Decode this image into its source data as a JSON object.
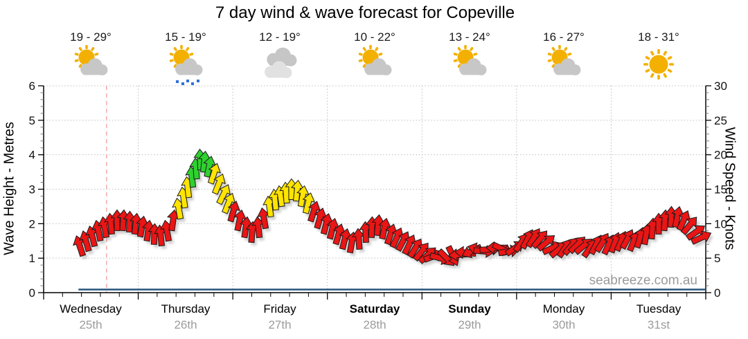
{
  "title": "7 day wind & wave forecast for Copeville",
  "watermark": "seabreeze.com.au",
  "days": [
    {
      "name": "Wednesday",
      "date": "25th",
      "temp": "19 - 29°",
      "icon": "sun-cloud",
      "bold": false
    },
    {
      "name": "Thursday",
      "date": "26th",
      "temp": "15 - 19°",
      "icon": "sun-cloud-showers",
      "bold": false
    },
    {
      "name": "Friday",
      "date": "27th",
      "temp": "12 - 19°",
      "icon": "cloudy",
      "bold": false
    },
    {
      "name": "Saturday",
      "date": "28th",
      "temp": "10 - 22°",
      "icon": "sun-cloud",
      "bold": true
    },
    {
      "name": "Sunday",
      "date": "29th",
      "temp": "13 - 24°",
      "icon": "sun-cloud",
      "bold": true
    },
    {
      "name": "Monday",
      "date": "30th",
      "temp": "16 - 27°",
      "icon": "sun-cloud",
      "bold": false
    },
    {
      "name": "Tuesday",
      "date": "31st",
      "temp": "18 - 31°",
      "icon": "sunny",
      "bold": false
    }
  ],
  "left_axis": {
    "label": "Wave Height - Metres",
    "min": 0,
    "max": 6,
    "ticks": [
      0,
      1,
      2,
      3,
      4,
      5,
      6
    ],
    "minor_step": 0.2
  },
  "right_axis": {
    "label": "Wind Speed - Knots",
    "min": 0,
    "max": 30,
    "ticks": [
      0,
      5,
      10,
      15,
      20,
      25,
      30
    ],
    "minor_step": 1
  },
  "colors": {
    "arrow_red": "#ea1515",
    "arrow_yellow": "#ffe400",
    "arrow_green": "#2fd12f",
    "arrow_outline": "#1a1a1a",
    "arrow_shadow": "#9a9a9a",
    "grid": "#bcbcbc",
    "axis": "#000000",
    "now_line": "#f2a5a5",
    "wave_line": "#24557e",
    "connect_line": "#b3b3b3",
    "sun": "#f3b000",
    "cloud": "#c7c7c7",
    "cloud_light": "#e1e1e1",
    "rain": "#2f6fe0",
    "date_text": "#9b9b9b",
    "watermark_text": "#9a9a9a"
  },
  "chart_data": {
    "type": "line",
    "x_unit": "days_from_wednesday_00h",
    "now_marker_t": 0.665,
    "series": [
      {
        "name": "wind",
        "unit": "knots",
        "note": "each point = [t_days, knots, arrow_direction_deg_cw_from_up, color r|y|g]",
        "points": [
          [
            0.381,
            6.8,
            -18,
            "r"
          ],
          [
            0.447,
            7.5,
            -16,
            "r"
          ],
          [
            0.513,
            8.2,
            -14,
            "r"
          ],
          [
            0.578,
            9.0,
            -12,
            "r"
          ],
          [
            0.644,
            9.5,
            -10,
            "r"
          ],
          [
            0.71,
            10.0,
            -6,
            "r"
          ],
          [
            0.776,
            10.5,
            0,
            "r"
          ],
          [
            0.842,
            10.5,
            4,
            "r"
          ],
          [
            0.908,
            10.3,
            2,
            "r"
          ],
          [
            0.974,
            10.0,
            6,
            "r"
          ],
          [
            1.04,
            9.6,
            10,
            "r"
          ],
          [
            1.106,
            9.0,
            8,
            "r"
          ],
          [
            1.171,
            8.5,
            2,
            "r"
          ],
          [
            1.237,
            8.3,
            -6,
            "r"
          ],
          [
            1.303,
            9.0,
            -10,
            "r"
          ],
          [
            1.369,
            10.5,
            8,
            "r"
          ],
          [
            1.428,
            12.2,
            -10,
            "y"
          ],
          [
            1.479,
            13.8,
            -8,
            "y"
          ],
          [
            1.523,
            15.3,
            -6,
            "y"
          ],
          [
            1.567,
            16.8,
            -6,
            "g"
          ],
          [
            1.611,
            18.0,
            -4,
            "g"
          ],
          [
            1.655,
            19.3,
            -2,
            "g"
          ],
          [
            1.699,
            19.0,
            6,
            "g"
          ],
          [
            1.75,
            18.3,
            12,
            "g"
          ],
          [
            1.801,
            17.3,
            18,
            "y"
          ],
          [
            1.852,
            15.8,
            22,
            "y"
          ],
          [
            1.904,
            14.3,
            26,
            "y"
          ],
          [
            1.955,
            13.0,
            22,
            "y"
          ],
          [
            2.006,
            11.8,
            16,
            "r"
          ],
          [
            2.072,
            10.5,
            12,
            "r"
          ],
          [
            2.138,
            9.5,
            8,
            "r"
          ],
          [
            2.204,
            8.8,
            4,
            "r"
          ],
          [
            2.27,
            9.5,
            -6,
            "r"
          ],
          [
            2.328,
            10.8,
            -10,
            "r"
          ],
          [
            2.387,
            12.5,
            -8,
            "y"
          ],
          [
            2.445,
            13.5,
            -6,
            "y"
          ],
          [
            2.504,
            14.0,
            -8,
            "y"
          ],
          [
            2.563,
            14.5,
            -4,
            "y"
          ],
          [
            2.621,
            15.0,
            0,
            "y"
          ],
          [
            2.68,
            14.8,
            6,
            "y"
          ],
          [
            2.738,
            14.0,
            10,
            "y"
          ],
          [
            2.797,
            13.0,
            14,
            "y"
          ],
          [
            2.856,
            11.8,
            18,
            "r"
          ],
          [
            2.921,
            10.8,
            16,
            "r"
          ],
          [
            2.987,
            10.0,
            14,
            "r"
          ],
          [
            3.053,
            9.3,
            14,
            "r"
          ],
          [
            3.119,
            8.5,
            16,
            "r"
          ],
          [
            3.185,
            7.8,
            14,
            "r"
          ],
          [
            3.258,
            7.3,
            10,
            "r"
          ],
          [
            3.331,
            7.8,
            -4,
            "r"
          ],
          [
            3.404,
            8.8,
            -2,
            "r"
          ],
          [
            3.47,
            9.5,
            2,
            "r"
          ],
          [
            3.536,
            9.8,
            6,
            "r"
          ],
          [
            3.602,
            9.3,
            12,
            "r"
          ],
          [
            3.668,
            8.5,
            18,
            "r"
          ],
          [
            3.734,
            8.0,
            24,
            "r"
          ],
          [
            3.8,
            7.5,
            28,
            "r"
          ],
          [
            3.866,
            7.0,
            26,
            "r"
          ],
          [
            3.932,
            6.5,
            32,
            "r"
          ],
          [
            3.997,
            6.0,
            38,
            "r"
          ],
          [
            4.063,
            5.5,
            48,
            "r"
          ],
          [
            4.129,
            5.3,
            70,
            "r"
          ],
          [
            4.195,
            5.0,
            105,
            "r"
          ],
          [
            4.261,
            5.0,
            135,
            "r"
          ],
          [
            4.327,
            5.3,
            155,
            "r"
          ],
          [
            4.393,
            5.5,
            -95,
            "r"
          ],
          [
            4.459,
            5.8,
            -85,
            "r"
          ],
          [
            4.525,
            6.0,
            -115,
            "r"
          ],
          [
            4.591,
            6.3,
            -75,
            "r"
          ],
          [
            4.657,
            6.0,
            95,
            "r"
          ],
          [
            4.723,
            6.3,
            85,
            "r"
          ],
          [
            4.788,
            6.5,
            -90,
            "r"
          ],
          [
            4.854,
            6.3,
            115,
            "r"
          ],
          [
            4.92,
            6.0,
            80,
            "r"
          ],
          [
            4.986,
            6.5,
            55,
            "r"
          ],
          [
            5.052,
            7.3,
            35,
            "r"
          ],
          [
            5.118,
            7.8,
            28,
            "r"
          ],
          [
            5.184,
            8.0,
            32,
            "r"
          ],
          [
            5.25,
            7.8,
            40,
            "r"
          ],
          [
            5.316,
            7.3,
            50,
            "r"
          ],
          [
            5.382,
            6.5,
            65,
            "r"
          ],
          [
            5.448,
            6.3,
            50,
            "r"
          ],
          [
            5.514,
            6.5,
            35,
            "r"
          ],
          [
            5.58,
            6.8,
            40,
            "r"
          ],
          [
            5.645,
            7.0,
            45,
            "r"
          ],
          [
            5.711,
            6.8,
            50,
            "r"
          ],
          [
            5.777,
            6.5,
            35,
            "r"
          ],
          [
            5.843,
            7.0,
            28,
            "r"
          ],
          [
            5.909,
            7.3,
            32,
            "r"
          ],
          [
            5.975,
            7.0,
            25,
            "r"
          ],
          [
            6.041,
            7.3,
            20,
            "r"
          ],
          [
            6.107,
            7.5,
            24,
            "r"
          ],
          [
            6.173,
            7.8,
            28,
            "r"
          ],
          [
            6.239,
            7.5,
            22,
            "r"
          ],
          [
            6.305,
            8.0,
            16,
            "r"
          ],
          [
            6.371,
            8.5,
            10,
            "r"
          ],
          [
            6.436,
            9.3,
            4,
            "r"
          ],
          [
            6.502,
            10.0,
            0,
            "r"
          ],
          [
            6.568,
            10.5,
            4,
            "r"
          ],
          [
            6.634,
            11.0,
            2,
            "r"
          ],
          [
            6.7,
            11.0,
            12,
            "r"
          ],
          [
            6.766,
            10.5,
            24,
            "r"
          ],
          [
            6.832,
            9.8,
            40,
            "r"
          ],
          [
            6.898,
            8.8,
            55,
            "r"
          ],
          [
            6.956,
            8.0,
            65,
            "r"
          ]
        ]
      },
      {
        "name": "wave-height",
        "unit": "metres",
        "style": "flat-line",
        "value_m": 0.05,
        "start_t": 0.368,
        "end_t": 7.0
      }
    ]
  }
}
